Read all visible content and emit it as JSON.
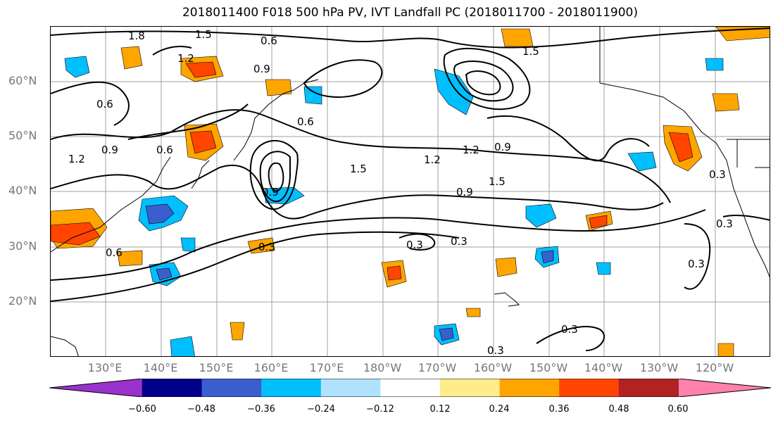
{
  "title": "2018011400 F018 500 hPa PV, IVT Landfall PC (2018011700 - 2018011900)",
  "lat_labels": [
    "60°N",
    "50°N",
    "40°N",
    "30°N",
    "20°N"
  ],
  "lon_labels": [
    "130°E",
    "140°E",
    "150°E",
    "160°E",
    "170°E",
    "180°W",
    "170°W",
    "160°W",
    "150°W",
    "140°W",
    "130°W",
    "120°W"
  ],
  "contour_labels": [
    "1.8",
    "1.5",
    "1.2",
    "0.6",
    "0.9",
    "0.6",
    "0.6",
    "0.9",
    "0.6",
    "1.2",
    "0.9",
    "1.5",
    "1.2",
    "1.5",
    "0.9",
    "1.2",
    "0.9",
    "1.5",
    "0.3",
    "0.6",
    "0.3",
    "0.3",
    "0.3",
    "0.3",
    "0.3",
    "0.3",
    "0.3"
  ],
  "colorbar": {
    "ticks": [
      "−0.60",
      "−0.48",
      "−0.36",
      "−0.24",
      "−0.12",
      "0.12",
      "0.24",
      "0.36",
      "0.48",
      "0.60"
    ],
    "colors": [
      "#9932cc",
      "#00008b",
      "#3a5fcd",
      "#00bfff",
      "#b0e2ff",
      "#ffffff",
      "#ffec8b",
      "#ffa500",
      "#ff4500",
      "#b22222",
      "#ff82ab"
    ]
  }
}
